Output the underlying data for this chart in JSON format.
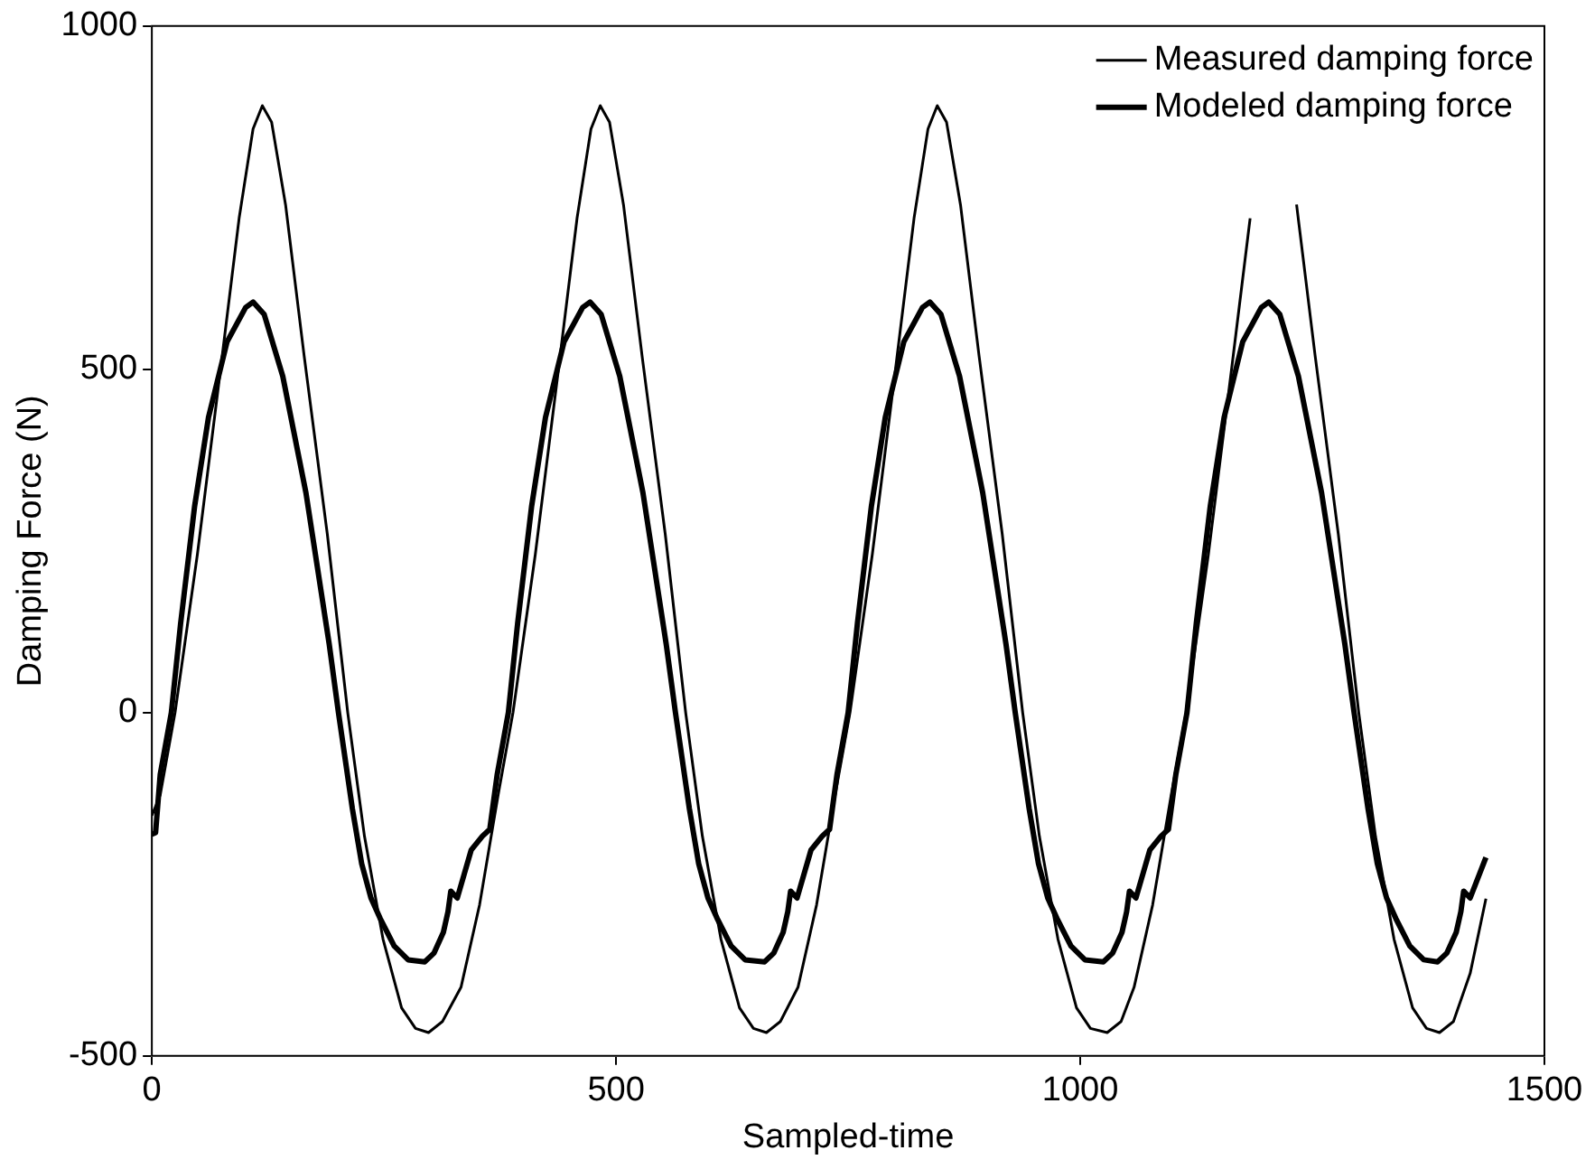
{
  "chart_data": {
    "type": "line",
    "xlabel": "Sampled-time",
    "ylabel": "Damping Force (N)",
    "xlim": [
      0,
      1500
    ],
    "ylim": [
      -500,
      1000
    ],
    "xticks": [
      0,
      500,
      1000,
      1500
    ],
    "yticks": [
      -500,
      0,
      500,
      1000
    ],
    "grid": false,
    "legend": "top right",
    "marker": "none",
    "line_style": "solid",
    "series": [
      {
        "name": "Measured damping force",
        "color": "#000000",
        "x": [
          0,
          9,
          25,
          49,
          74,
          94,
          109,
          119,
          129,
          144,
          164,
          189,
          211,
          229,
          249,
          269,
          284,
          298,
          313,
          333,
          353,
          373,
          389,
          413,
          438,
          458,
          473,
          483,
          493,
          508,
          528,
          553,
          575,
          593,
          613,
          633,
          648,
          662,
          677,
          696,
          716,
          736,
          752,
          776,
          801,
          821,
          836,
          846,
          856,
          871,
          891,
          916,
          938,
          956,
          976,
          996,
          1011,
          1029,
          1044,
          1058,
          1078,
          1098,
          1114,
          1138,
          1163,
          1183,
          1198,
          1208,
          1218,
          1233,
          1253,
          1278,
          1300,
          1318,
          1338,
          1358,
          1373,
          1387,
          1402,
          1420,
          1437
        ],
        "values": [
          -150,
          -120,
          0,
          230,
          500,
          720,
          850,
          884,
          860,
          740,
          520,
          260,
          0,
          -180,
          -330,
          -430,
          -460,
          -466,
          -450,
          -400,
          -280,
          -120,
          0,
          230,
          500,
          720,
          850,
          884,
          860,
          740,
          520,
          260,
          0,
          -180,
          -330,
          -430,
          -460,
          -466,
          -450,
          -400,
          -280,
          -120,
          0,
          230,
          500,
          720,
          850,
          884,
          860,
          740,
          520,
          260,
          0,
          -180,
          -330,
          -430,
          -460,
          -466,
          -450,
          -400,
          -280,
          -120,
          0,
          230,
          500,
          720,
          null,
          null,
          null,
          740,
          520,
          260,
          0,
          -180,
          -330,
          -430,
          -460,
          -466,
          -450,
          -380,
          -271
        ]
      },
      {
        "name": "Modeled damping force",
        "color": "#000000",
        "x": [
          0,
          4,
          9,
          21,
          31,
          46,
          61,
          81,
          101,
          109,
          121,
          141,
          166,
          191,
          201,
          216,
          226,
          236,
          246,
          261,
          276,
          294,
          304,
          314,
          319,
          322,
          329,
          344,
          356,
          364,
          372,
          384,
          394,
          409,
          424,
          444,
          464,
          472,
          484,
          504,
          529,
          554,
          564,
          579,
          589,
          599,
          609,
          624,
          639,
          660,
          670,
          680,
          685,
          688,
          695,
          710,
          722,
          730,
          738,
          750,
          760,
          775,
          790,
          810,
          830,
          838,
          850,
          870,
          895,
          920,
          930,
          945,
          955,
          965,
          975,
          990,
          1005,
          1025,
          1035,
          1045,
          1050,
          1053,
          1060,
          1075,
          1087,
          1095,
          1103,
          1115,
          1125,
          1140,
          1155,
          1175,
          1195,
          1203,
          1215,
          1235,
          1260,
          1285,
          1295,
          1310,
          1320,
          1330,
          1340,
          1355,
          1370,
          1385,
          1395,
          1405,
          1410,
          1413,
          1420,
          1437
        ],
        "values": [
          -177,
          -175,
          -90,
          0,
          130,
          300,
          430,
          540,
          590,
          598,
          580,
          490,
          320,
          100,
          0,
          -140,
          -220,
          -270,
          -300,
          -340,
          -360,
          -363,
          -350,
          -320,
          -290,
          -260,
          -270,
          -200,
          -180,
          -170,
          -90,
          0,
          130,
          300,
          430,
          540,
          590,
          598,
          580,
          490,
          320,
          100,
          0,
          -140,
          -220,
          -270,
          -300,
          -340,
          -360,
          -363,
          -350,
          -320,
          -290,
          -260,
          -270,
          -200,
          -180,
          -170,
          -90,
          0,
          130,
          300,
          430,
          540,
          590,
          598,
          580,
          490,
          320,
          100,
          0,
          -140,
          -220,
          -270,
          -300,
          -340,
          -360,
          -363,
          -350,
          -320,
          -290,
          -260,
          -270,
          -200,
          -180,
          -170,
          -90,
          0,
          130,
          300,
          430,
          540,
          590,
          598,
          580,
          490,
          320,
          100,
          0,
          -140,
          -220,
          -270,
          -300,
          -340,
          -360,
          -363,
          -350,
          -320,
          -290,
          -260,
          -270,
          -211
        ]
      }
    ]
  }
}
